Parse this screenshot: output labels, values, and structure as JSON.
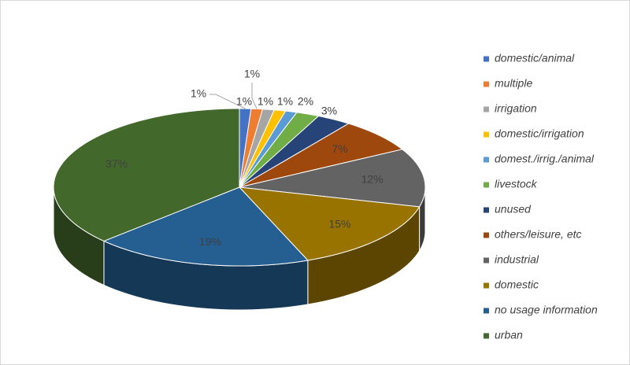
{
  "chart_data": {
    "type": "pie3d",
    "categories": [
      "domestic/animal",
      "multiple",
      "irrigation",
      "domestic/irrigation",
      "domest./irrig./animal",
      "livestock",
      "unused",
      "others/leisure, etc",
      "industrial",
      "domestic",
      "no usage information",
      "urban"
    ],
    "values": [
      1,
      1,
      1,
      1,
      1,
      2,
      3,
      7,
      12,
      15,
      19,
      37
    ],
    "value_labels": [
      "1%",
      "1%",
      "1%",
      "1%",
      "1%",
      "2%",
      "3%",
      "7%",
      "12%",
      "15%",
      "19%",
      "37%"
    ],
    "colors": [
      "#4472c4",
      "#ed7d31",
      "#a5a5a5",
      "#ffc000",
      "#5b9bd5",
      "#70ad47",
      "#264478",
      "#9e480e",
      "#636363",
      "#997300",
      "#255e91",
      "#43682b"
    ],
    "legend": "right"
  }
}
